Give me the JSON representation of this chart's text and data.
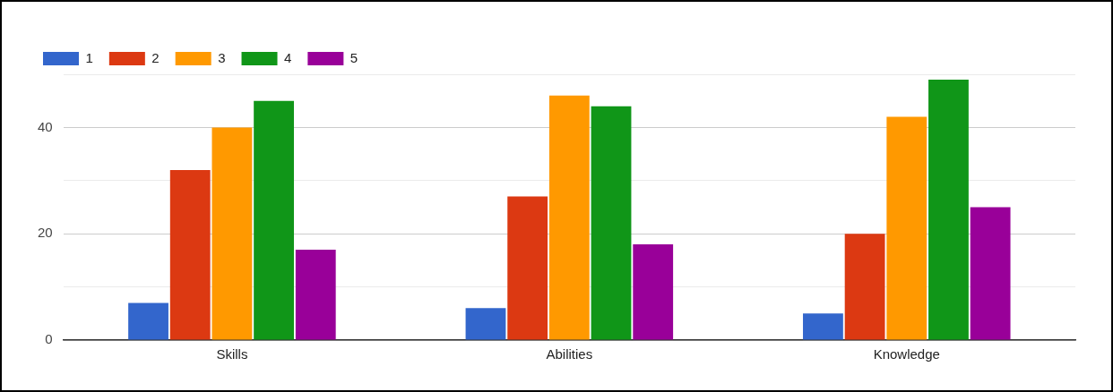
{
  "chart_data": {
    "type": "bar",
    "categories": [
      "Skills",
      "Abilities",
      "Knowledge"
    ],
    "series": [
      {
        "name": "1",
        "color": "#3366cc",
        "values": [
          7,
          6,
          5
        ]
      },
      {
        "name": "2",
        "color": "#dc3912",
        "values": [
          32,
          27,
          20
        ]
      },
      {
        "name": "3",
        "color": "#ff9900",
        "values": [
          40,
          46,
          42
        ]
      },
      {
        "name": "4",
        "color": "#109618",
        "values": [
          45,
          44,
          49
        ]
      },
      {
        "name": "5",
        "color": "#990099",
        "values": [
          17,
          18,
          25
        ]
      }
    ],
    "ylim": [
      0,
      50
    ],
    "yticks": [
      0,
      {
        "value": 10,
        "label": null
      },
      20,
      {
        "value": 30,
        "label": null
      },
      40,
      {
        "value": 50,
        "label": null
      }
    ],
    "grid": "y",
    "legend": "top left"
  }
}
